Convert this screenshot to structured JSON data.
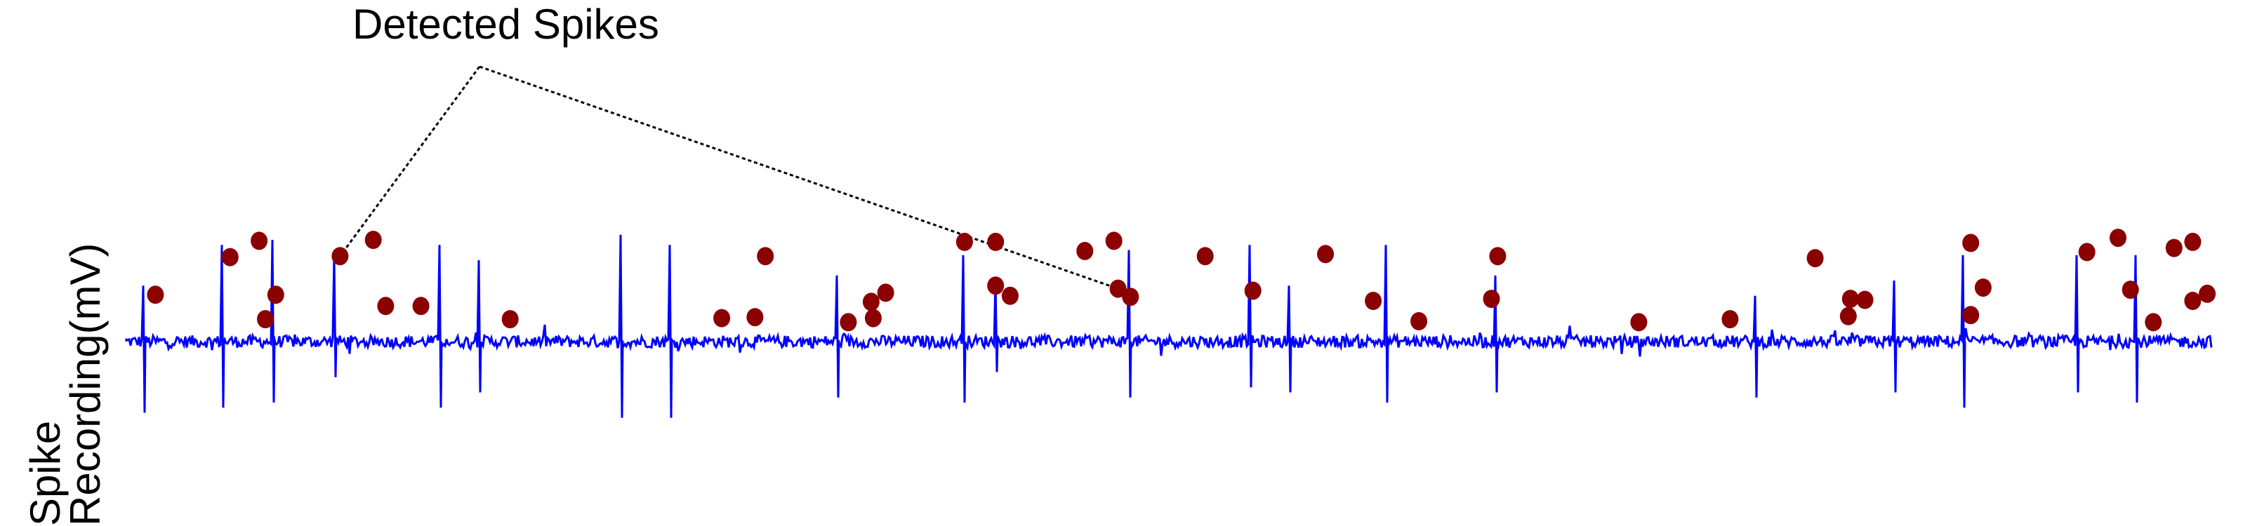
{
  "chart_data": {
    "type": "line",
    "title": "",
    "xlabel": "",
    "ylabel_lines": [
      "Spike",
      "Recording(mV)"
    ],
    "grid": false,
    "axes_visible": false,
    "trace_color": "#0000ff",
    "marker_color": "#8b0000",
    "annotation": {
      "text": "Detected Spikes",
      "targets": [
        5,
        23
      ]
    },
    "spikes": [
      {
        "t": 0.8,
        "amp": 0.55,
        "neg": -0.7
      },
      {
        "t": 4.6,
        "amp": 0.95,
        "neg": -0.65
      },
      {
        "t": 7.0,
        "amp": 1.0,
        "neg": -0.6
      },
      {
        "t": 10.0,
        "amp": 0.85,
        "neg": -0.35
      },
      {
        "t": 15.1,
        "amp": 0.95,
        "neg": -0.65
      },
      {
        "t": 17.0,
        "amp": 0.8,
        "neg": -0.5
      },
      {
        "t": 23.8,
        "amp": 1.05,
        "neg": -0.75
      },
      {
        "t": 26.2,
        "amp": 0.95,
        "neg": -0.75
      },
      {
        "t": 34.2,
        "amp": 0.65,
        "neg": -0.55
      },
      {
        "t": 40.3,
        "amp": 0.85,
        "neg": -0.6
      },
      {
        "t": 41.9,
        "amp": 0.6,
        "neg": -0.3
      },
      {
        "t": 48.3,
        "amp": 0.9,
        "neg": -0.55
      },
      {
        "t": 54.1,
        "amp": 0.95,
        "neg": -0.45
      },
      {
        "t": 56.0,
        "amp": 0.55,
        "neg": -0.5
      },
      {
        "t": 60.7,
        "amp": 0.95,
        "neg": -0.6
      },
      {
        "t": 66.0,
        "amp": 0.65,
        "neg": -0.5
      },
      {
        "t": 78.5,
        "amp": 0.45,
        "neg": -0.55
      },
      {
        "t": 85.2,
        "amp": 0.6,
        "neg": -0.5
      },
      {
        "t": 88.5,
        "amp": 0.85,
        "neg": -0.65
      },
      {
        "t": 94.0,
        "amp": 0.85,
        "neg": -0.5
      },
      {
        "t": 96.8,
        "amp": 0.85,
        "neg": -0.6
      }
    ],
    "detected_points": [
      {
        "t": 1.4,
        "y": 0.46
      },
      {
        "t": 5.0,
        "y": 0.83
      },
      {
        "t": 6.4,
        "y": 0.99
      },
      {
        "t": 6.7,
        "y": 0.22
      },
      {
        "t": 7.2,
        "y": 0.46
      },
      {
        "t": 10.3,
        "y": 0.84
      },
      {
        "t": 11.9,
        "y": 1.0
      },
      {
        "t": 12.5,
        "y": 0.35
      },
      {
        "t": 14.2,
        "y": 0.35
      },
      {
        "t": 18.5,
        "y": 0.22
      },
      {
        "t": 28.7,
        "y": 0.23
      },
      {
        "t": 30.3,
        "y": 0.24
      },
      {
        "t": 30.8,
        "y": 0.84
      },
      {
        "t": 34.8,
        "y": 0.19
      },
      {
        "t": 35.9,
        "y": 0.39
      },
      {
        "t": 36.0,
        "y": 0.23
      },
      {
        "t": 36.6,
        "y": 0.48
      },
      {
        "t": 40.4,
        "y": 0.98
      },
      {
        "t": 41.9,
        "y": 0.98
      },
      {
        "t": 41.9,
        "y": 0.55
      },
      {
        "t": 42.6,
        "y": 0.45
      },
      {
        "t": 46.2,
        "y": 0.89
      },
      {
        "t": 47.6,
        "y": 0.99
      },
      {
        "t": 47.8,
        "y": 0.52
      },
      {
        "t": 48.4,
        "y": 0.44
      },
      {
        "t": 52.0,
        "y": 0.84
      },
      {
        "t": 54.3,
        "y": 0.5
      },
      {
        "t": 57.8,
        "y": 0.86
      },
      {
        "t": 60.1,
        "y": 0.4
      },
      {
        "t": 62.3,
        "y": 0.2
      },
      {
        "t": 65.8,
        "y": 0.42
      },
      {
        "t": 66.1,
        "y": 0.84
      },
      {
        "t": 72.9,
        "y": 0.19
      },
      {
        "t": 77.3,
        "y": 0.22
      },
      {
        "t": 81.4,
        "y": 0.82
      },
      {
        "t": 83.0,
        "y": 0.25
      },
      {
        "t": 83.1,
        "y": 0.42
      },
      {
        "t": 83.8,
        "y": 0.41
      },
      {
        "t": 88.9,
        "y": 0.97
      },
      {
        "t": 88.9,
        "y": 0.26
      },
      {
        "t": 89.5,
        "y": 0.53
      },
      {
        "t": 94.5,
        "y": 0.88
      },
      {
        "t": 96.0,
        "y": 1.02
      },
      {
        "t": 96.6,
        "y": 0.51
      },
      {
        "t": 97.7,
        "y": 0.19
      },
      {
        "t": 98.7,
        "y": 0.92
      },
      {
        "t": 99.6,
        "y": 0.98
      },
      {
        "t": 99.6,
        "y": 0.4
      },
      {
        "t": 100.3,
        "y": 0.47
      }
    ],
    "x_range": [
      0,
      100.5
    ],
    "y_range": [
      -0.8,
      1.12
    ]
  }
}
